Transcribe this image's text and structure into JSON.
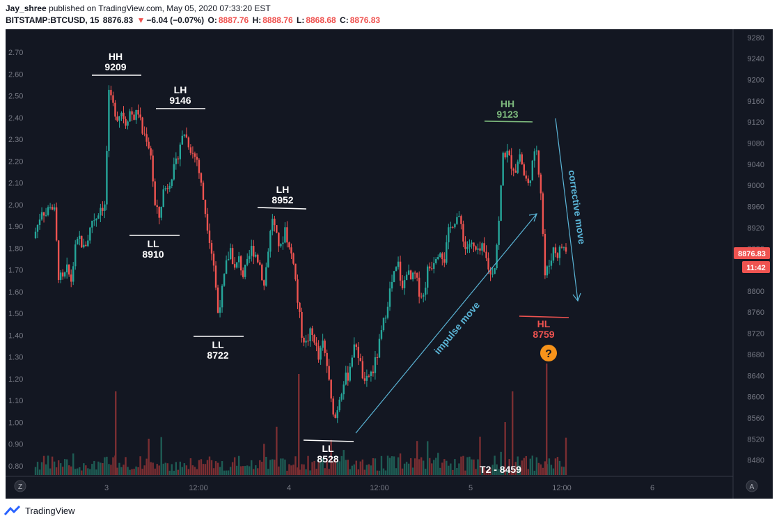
{
  "header": {
    "user": "Jay_shree",
    "published_text": "published on TradingView.com, May 05, 2020 07:33:20 EST",
    "symbol": "BITSTAMP:BTCUSD, 15",
    "last": "8876.83",
    "arrow": "▼",
    "change": "−6.04 (−0.07%)",
    "o_label": "O:",
    "o_value": "8887.76",
    "h_label": "H:",
    "h_value": "8888.76",
    "l_label": "L:",
    "l_value": "8868.68",
    "c_label": "C:",
    "c_value": "8876.83"
  },
  "footer": {
    "brand": "TradingView"
  },
  "badges": {
    "price": "8876.83",
    "timer": "11:42",
    "zoom_left": "Z",
    "auto_right": "A"
  },
  "colors": {
    "up": "#26a69a",
    "down": "#ef5350",
    "green_text": "#7cb87c",
    "red_text": "#ef5350",
    "annotation": "#5ab4d6",
    "question": "#f7931a"
  },
  "chart_data": {
    "type": "candlestick",
    "y_right": {
      "min": 8460,
      "max": 9290,
      "ticks": [
        9280,
        9240,
        9200,
        9160,
        9120,
        9080,
        9040,
        9000,
        8960,
        8920,
        8880,
        8840,
        8800,
        8760,
        8720,
        8680,
        8640,
        8600,
        8560,
        8520,
        8480
      ]
    },
    "y_left_ticks": [
      "2.70",
      "2.60",
      "2.50",
      "2.40",
      "2.30",
      "2.20",
      "2.10",
      "2.00",
      "1.90",
      "1.80",
      "1.70",
      "1.60",
      "1.50",
      "1.40",
      "1.30",
      "1.20",
      "1.10",
      "1.00",
      "0.90",
      "0.80"
    ],
    "x_ticks": [
      "3",
      "12:00",
      "4",
      "12:00",
      "5",
      "12:00",
      "6"
    ],
    "price_path": [
      [
        0,
        8900
      ],
      [
        6,
        8925
      ],
      [
        12,
        8955
      ],
      [
        18,
        8945
      ],
      [
        24,
        8965
      ],
      [
        30,
        8950
      ],
      [
        36,
        8830
      ],
      [
        42,
        8820
      ],
      [
        48,
        8840
      ],
      [
        54,
        8820
      ],
      [
        60,
        8880
      ],
      [
        66,
        8900
      ],
      [
        72,
        8880
      ],
      [
        78,
        8900
      ],
      [
        84,
        8935
      ],
      [
        90,
        8940
      ],
      [
        96,
        8960
      ],
      [
        102,
        8960
      ],
      [
        108,
        9170
      ],
      [
        114,
        9150
      ],
      [
        120,
        9130
      ],
      [
        126,
        9140
      ],
      [
        132,
        9120
      ],
      [
        138,
        9140
      ],
      [
        144,
        9130
      ],
      [
        150,
        9140
      ],
      [
        156,
        9100
      ],
      [
        162,
        9090
      ],
      [
        168,
        9060
      ],
      [
        174,
        8960
      ],
      [
        180,
        8940
      ],
      [
        186,
        8990
      ],
      [
        192,
        9000
      ],
      [
        198,
        9020
      ],
      [
        204,
        9040
      ],
      [
        210,
        9080
      ],
      [
        216,
        9100
      ],
      [
        222,
        9080
      ],
      [
        228,
        9060
      ],
      [
        234,
        9050
      ],
      [
        240,
        9000
      ],
      [
        246,
        8950
      ],
      [
        252,
        8900
      ],
      [
        258,
        8850
      ],
      [
        264,
        8760
      ],
      [
        270,
        8800
      ],
      [
        276,
        8850
      ],
      [
        282,
        8880
      ],
      [
        288,
        8840
      ],
      [
        294,
        8860
      ],
      [
        300,
        8830
      ],
      [
        306,
        8850
      ],
      [
        312,
        8880
      ],
      [
        318,
        8870
      ],
      [
        324,
        8850
      ],
      [
        330,
        8810
      ],
      [
        336,
        8880
      ],
      [
        342,
        8940
      ],
      [
        348,
        8900
      ],
      [
        354,
        8880
      ],
      [
        360,
        8920
      ],
      [
        366,
        8880
      ],
      [
        372,
        8860
      ],
      [
        378,
        8780
      ],
      [
        384,
        8720
      ],
      [
        390,
        8700
      ],
      [
        396,
        8720
      ],
      [
        402,
        8710
      ],
      [
        408,
        8670
      ],
      [
        414,
        8700
      ],
      [
        420,
        8660
      ],
      [
        426,
        8590
      ],
      [
        432,
        8560
      ],
      [
        438,
        8600
      ],
      [
        444,
        8630
      ],
      [
        450,
        8640
      ],
      [
        456,
        8680
      ],
      [
        462,
        8700
      ],
      [
        468,
        8660
      ],
      [
        474,
        8620
      ],
      [
        480,
        8640
      ],
      [
        486,
        8650
      ],
      [
        492,
        8680
      ],
      [
        498,
        8720
      ],
      [
        504,
        8760
      ],
      [
        510,
        8800
      ],
      [
        516,
        8830
      ],
      [
        522,
        8850
      ],
      [
        528,
        8800
      ],
      [
        534,
        8840
      ],
      [
        540,
        8820
      ],
      [
        546,
        8830
      ],
      [
        552,
        8800
      ],
      [
        558,
        8790
      ],
      [
        564,
        8840
      ],
      [
        570,
        8850
      ],
      [
        576,
        8870
      ],
      [
        582,
        8880
      ],
      [
        588,
        8860
      ],
      [
        594,
        8910
      ],
      [
        600,
        8930
      ],
      [
        606,
        8940
      ],
      [
        612,
        8925
      ],
      [
        618,
        8880
      ],
      [
        624,
        8890
      ],
      [
        630,
        8880
      ],
      [
        636,
        8870
      ],
      [
        642,
        8880
      ],
      [
        648,
        8860
      ],
      [
        654,
        8830
      ],
      [
        660,
        8850
      ],
      [
        666,
        8930
      ],
      [
        672,
        9060
      ],
      [
        678,
        9060
      ],
      [
        684,
        9040
      ],
      [
        690,
        9030
      ],
      [
        696,
        9060
      ],
      [
        702,
        9020
      ],
      [
        708,
        9000
      ],
      [
        714,
        9040
      ],
      [
        720,
        9070
      ],
      [
        726,
        8990
      ],
      [
        732,
        8830
      ],
      [
        738,
        8850
      ],
      [
        744,
        8880
      ],
      [
        750,
        8870
      ],
      [
        756,
        8885
      ],
      [
        762,
        8876.83
      ]
    ],
    "pivots": [
      {
        "type": "HH",
        "value": "9209",
        "color": "white"
      },
      {
        "type": "LL",
        "value": "8910",
        "color": "white"
      },
      {
        "type": "LH",
        "value": "9146",
        "color": "white"
      },
      {
        "type": "LL",
        "value": "8722",
        "color": "white"
      },
      {
        "type": "LH",
        "value": "8952",
        "color": "white"
      },
      {
        "type": "LL",
        "value": "8528",
        "color": "white"
      },
      {
        "type": "HH",
        "value": "9123",
        "color": "green"
      },
      {
        "type": "HL",
        "value": "8759",
        "color": "red"
      }
    ],
    "annotations": [
      {
        "text": "impulse move"
      },
      {
        "text": "corrective move"
      },
      {
        "text": "T2 - 8459"
      },
      {
        "text": "?"
      }
    ]
  }
}
